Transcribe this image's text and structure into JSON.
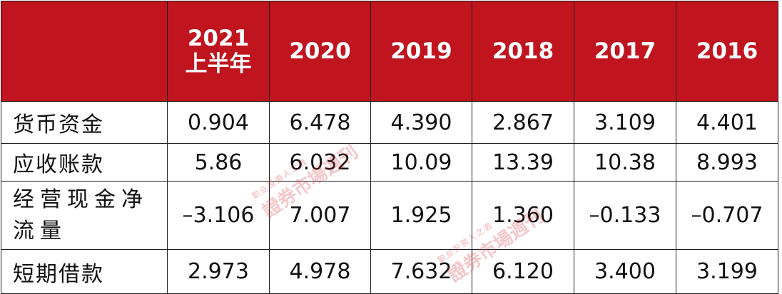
{
  "table": {
    "headers": [
      "",
      "2021",
      "2020",
      "2019",
      "2018",
      "2017",
      "2016"
    ],
    "header_sub": "上半年",
    "rows": [
      {
        "label": "货币资金",
        "values": [
          "0.904",
          "6.478",
          "4.390",
          "2.867",
          "3.109",
          "4.401"
        ]
      },
      {
        "label": "应收账款",
        "values": [
          "5.86",
          "6.032",
          "10.09",
          "13.39",
          "10.38",
          "8.993"
        ]
      },
      {
        "label": "经营现金净流量",
        "values": [
          "–3.106",
          "7.007",
          "1.925",
          "1.360",
          "–0.133",
          "–0.707"
        ]
      },
      {
        "label": "短期借款",
        "values": [
          "2.973",
          "4.978",
          "7.632",
          "6.120",
          "3.400",
          "3.199"
        ]
      }
    ]
  },
  "watermark": {
    "text": "證券市場週刊",
    "tagline": "职业投资人之选",
    "color": "#d93a3f"
  },
  "colors": {
    "header_bg": "#c0151f",
    "header_text": "#ffffff",
    "border": "#1f1f1f"
  }
}
